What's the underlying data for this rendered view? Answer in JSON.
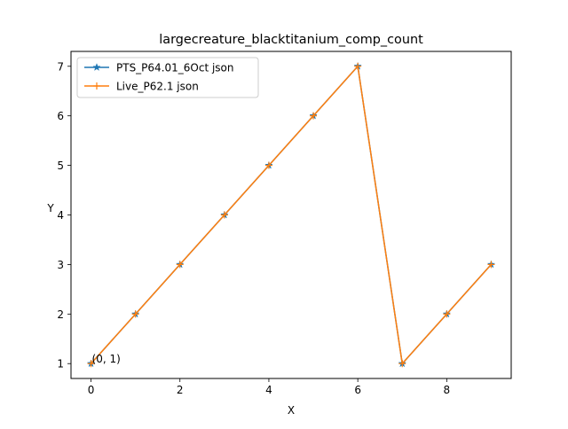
{
  "chart_data": {
    "type": "line",
    "title": "largecreature_blacktitanium_comp_count",
    "xlabel": "X",
    "ylabel": "Y",
    "xlim": [
      -0.45,
      9.45
    ],
    "ylim": [
      0.7,
      7.3
    ],
    "xticks": [
      0,
      2,
      4,
      6,
      8
    ],
    "yticks": [
      1,
      2,
      3,
      4,
      5,
      6,
      7
    ],
    "grid": false,
    "legend_position": "upper-left",
    "x": [
      0,
      1,
      2,
      3,
      4,
      5,
      6,
      7,
      8,
      9
    ],
    "series": [
      {
        "name": "PTS_P64.01_6Oct json",
        "values": [
          1,
          2,
          3,
          4,
          5,
          6,
          7,
          1,
          2,
          3
        ],
        "color": "#1f77b4",
        "marker": "star"
      },
      {
        "name": "Live_P62.1 json",
        "values": [
          1,
          2,
          3,
          4,
          5,
          6,
          7,
          1,
          2,
          3
        ],
        "color": "#ff7f0e",
        "marker": "plus"
      }
    ],
    "annotations": [
      {
        "text": "(0, 1)",
        "x": 0,
        "y": 1
      }
    ]
  }
}
